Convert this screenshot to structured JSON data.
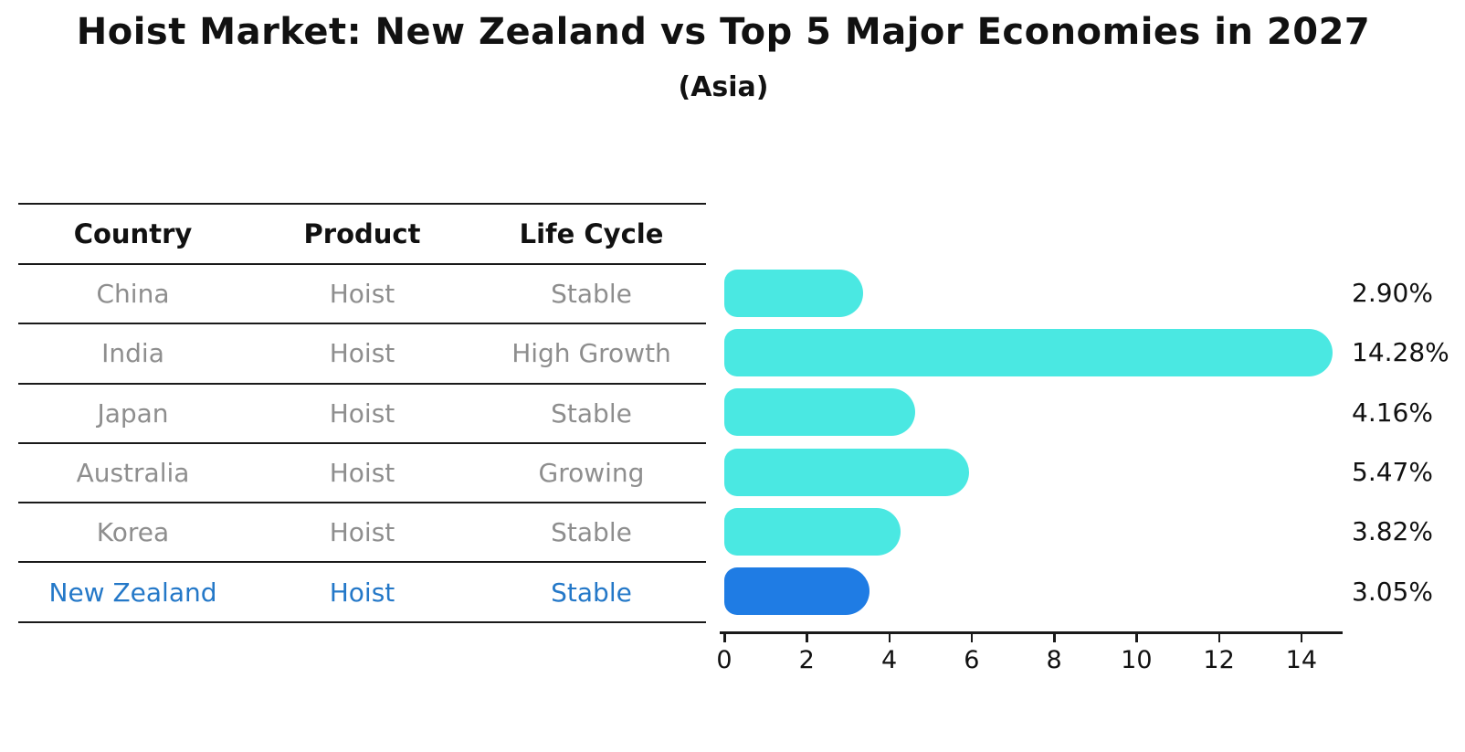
{
  "title": "Hoist Market: New Zealand vs Top 5 Major Economies in 2027",
  "subtitle": "(Asia)",
  "table": {
    "headers": [
      "Country",
      "Product",
      "Life Cycle"
    ],
    "rows": [
      {
        "country": "China",
        "product": "Hoist",
        "life_cycle": "Stable"
      },
      {
        "country": "India",
        "product": "Hoist",
        "life_cycle": "High Growth"
      },
      {
        "country": "Japan",
        "product": "Hoist",
        "life_cycle": "Stable"
      },
      {
        "country": "Australia",
        "product": "Hoist",
        "life_cycle": "Growing"
      },
      {
        "country": "Korea",
        "product": "Hoist",
        "life_cycle": "Stable"
      },
      {
        "country": "New Zealand",
        "product": "Hoist",
        "life_cycle": "Stable"
      }
    ],
    "highlighted_row": "New Zealand"
  },
  "chart_data": {
    "type": "bar",
    "orientation": "horizontal",
    "title": "Hoist Market: New Zealand vs Top 5 Major Economies in 2027",
    "subtitle": "(Asia)",
    "categories": [
      "China",
      "India",
      "Japan",
      "Australia",
      "Korea",
      "New Zealand"
    ],
    "values": [
      2.9,
      14.28,
      4.16,
      5.47,
      3.82,
      3.05
    ],
    "value_labels": [
      "2.90%",
      "14.28%",
      "4.16%",
      "5.47%",
      "3.82%",
      "3.05%"
    ],
    "unit": "percent",
    "x_ticks": [
      0,
      2,
      4,
      6,
      8,
      10,
      12,
      14
    ],
    "xlim": [
      0,
      15
    ],
    "grid": false,
    "legend": false,
    "bar_color": "#4AE8E2",
    "highlight_color": "#1F7CE4",
    "highlight_index": 5,
    "highlight_style": "dotted-border"
  },
  "colors": {
    "background": "#FFFFFF",
    "text_primary": "#111111",
    "table_text": "#8E8E8E",
    "highlight_text": "#2478C8",
    "axis": "#1A1A1A"
  }
}
